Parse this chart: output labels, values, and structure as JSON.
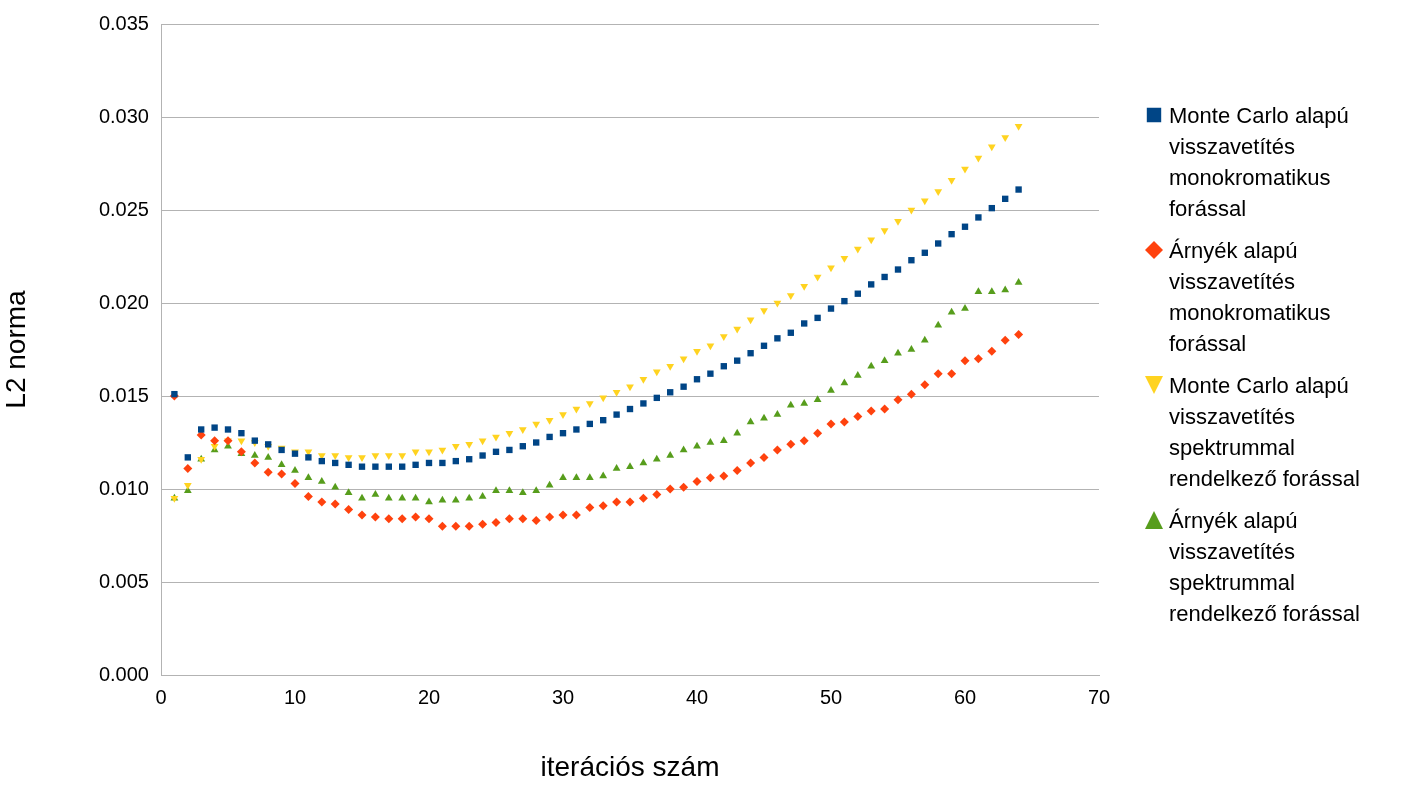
{
  "chart_data": {
    "type": "scatter",
    "xlabel": "iterációs szám",
    "ylabel": "L2 norma",
    "x": [
      1,
      2,
      3,
      4,
      5,
      6,
      7,
      8,
      9,
      10,
      11,
      12,
      13,
      14,
      15,
      16,
      17,
      18,
      19,
      20,
      21,
      22,
      23,
      24,
      25,
      26,
      27,
      28,
      29,
      30,
      31,
      32,
      33,
      34,
      35,
      36,
      37,
      38,
      39,
      40,
      41,
      42,
      43,
      44,
      45,
      46,
      47,
      48,
      49,
      50,
      51,
      52,
      53,
      54,
      55,
      56,
      57,
      58,
      59,
      60,
      61,
      62,
      63,
      64
    ],
    "xlim": [
      0,
      70
    ],
    "xticks": [
      0,
      10,
      20,
      30,
      40,
      50,
      60,
      70
    ],
    "ylim": [
      0,
      0.035
    ],
    "yticks": [
      {
        "value": 0,
        "label": "0.000"
      },
      0.005,
      {
        "value": 0.01,
        "label": "0.010"
      },
      0.015,
      {
        "value": 0.02,
        "label": "0.020"
      },
      0.025,
      {
        "value": 0.03,
        "label": "0.030"
      },
      0.035
    ],
    "grid": "y",
    "legend": "right",
    "series": [
      {
        "name": "Monte Carlo alapú visszavetítés monokromatikus forással",
        "color": "#004586",
        "marker": "square",
        "values": [
          0.0151,
          0.0117,
          0.0132,
          0.0133,
          0.0132,
          0.013,
          0.0126,
          0.0124,
          0.0121,
          0.0119,
          0.0117,
          0.0115,
          0.0114,
          0.0113,
          0.0112,
          0.0112,
          0.0112,
          0.0112,
          0.0113,
          0.0114,
          0.0114,
          0.0115,
          0.0116,
          0.0118,
          0.012,
          0.0121,
          0.0123,
          0.0125,
          0.0128,
          0.013,
          0.0132,
          0.0135,
          0.0137,
          0.014,
          0.0143,
          0.0146,
          0.0149,
          0.0152,
          0.0155,
          0.0159,
          0.0162,
          0.0166,
          0.0169,
          0.0173,
          0.0177,
          0.0181,
          0.0184,
          0.0189,
          0.0192,
          0.0197,
          0.0201,
          0.0205,
          0.021,
          0.0214,
          0.0218,
          0.0223,
          0.0227,
          0.0232,
          0.0237,
          0.0241,
          0.0246,
          0.0251,
          0.0256,
          0.0261
        ]
      },
      {
        "name": "Árnyék alapú visszavetítés monokromatikus forással",
        "color": "#ff420e",
        "marker": "diamond",
        "values": [
          0.015,
          0.0111,
          0.0129,
          0.0126,
          0.0126,
          0.012,
          0.0114,
          0.0109,
          0.0108,
          0.0103,
          0.0096,
          0.0093,
          0.0092,
          0.0089,
          0.0086,
          0.0085,
          0.0084,
          0.0084,
          0.0085,
          0.0084,
          0.008,
          0.008,
          0.008,
          0.0081,
          0.0082,
          0.0084,
          0.0084,
          0.0083,
          0.0085,
          0.0086,
          0.0086,
          0.009,
          0.0091,
          0.0093,
          0.0093,
          0.0095,
          0.0097,
          0.01,
          0.0101,
          0.0104,
          0.0106,
          0.0107,
          0.011,
          0.0114,
          0.0117,
          0.0121,
          0.0124,
          0.0126,
          0.013,
          0.0135,
          0.0136,
          0.0139,
          0.0142,
          0.0143,
          0.0148,
          0.0151,
          0.0156,
          0.0162,
          0.0162,
          0.0169,
          0.017,
          0.0174,
          0.018,
          0.0183
        ]
      },
      {
        "name": "Monte Carlo alapú visszavetítés spektrummal rendelkező forással",
        "color": "#ffd320",
        "marker": "triangle-down",
        "values": [
          0.0095,
          0.0102,
          0.0116,
          0.0123,
          0.0126,
          0.0126,
          0.0125,
          0.0123,
          0.0122,
          0.012,
          0.012,
          0.0118,
          0.0118,
          0.0117,
          0.0117,
          0.0118,
          0.0118,
          0.0118,
          0.012,
          0.012,
          0.0121,
          0.0123,
          0.0124,
          0.0126,
          0.0128,
          0.013,
          0.0132,
          0.0135,
          0.0137,
          0.014,
          0.0143,
          0.0146,
          0.0149,
          0.0152,
          0.0155,
          0.0159,
          0.0163,
          0.0166,
          0.017,
          0.0174,
          0.0177,
          0.0182,
          0.0186,
          0.0191,
          0.0196,
          0.02,
          0.0204,
          0.0209,
          0.0214,
          0.0219,
          0.0224,
          0.0229,
          0.0234,
          0.0239,
          0.0244,
          0.025,
          0.0255,
          0.026,
          0.0266,
          0.0272,
          0.0278,
          0.0284,
          0.0289,
          0.0295
        ]
      },
      {
        "name": "Árnyék alapú visszavetítés spektrummal rendelkező forással",
        "color": "#579d1c",
        "marker": "triangle",
        "values": [
          0.0095,
          0.0099,
          0.0116,
          0.0121,
          0.0123,
          0.0119,
          0.0118,
          0.0117,
          0.0113,
          0.011,
          0.0106,
          0.0104,
          0.0101,
          0.0098,
          0.0095,
          0.0097,
          0.0095,
          0.0095,
          0.0095,
          0.0093,
          0.0094,
          0.0094,
          0.0095,
          0.0096,
          0.0099,
          0.0099,
          0.0098,
          0.0099,
          0.0102,
          0.0106,
          0.0106,
          0.0106,
          0.0107,
          0.0111,
          0.0112,
          0.0114,
          0.0116,
          0.0118,
          0.0121,
          0.0123,
          0.0125,
          0.0126,
          0.013,
          0.0136,
          0.0138,
          0.014,
          0.0145,
          0.0146,
          0.0148,
          0.0153,
          0.0157,
          0.0161,
          0.0166,
          0.0169,
          0.0173,
          0.0175,
          0.018,
          0.0188,
          0.0195,
          0.0197,
          0.0206,
          0.0206,
          0.0207,
          0.0211
        ]
      }
    ]
  }
}
